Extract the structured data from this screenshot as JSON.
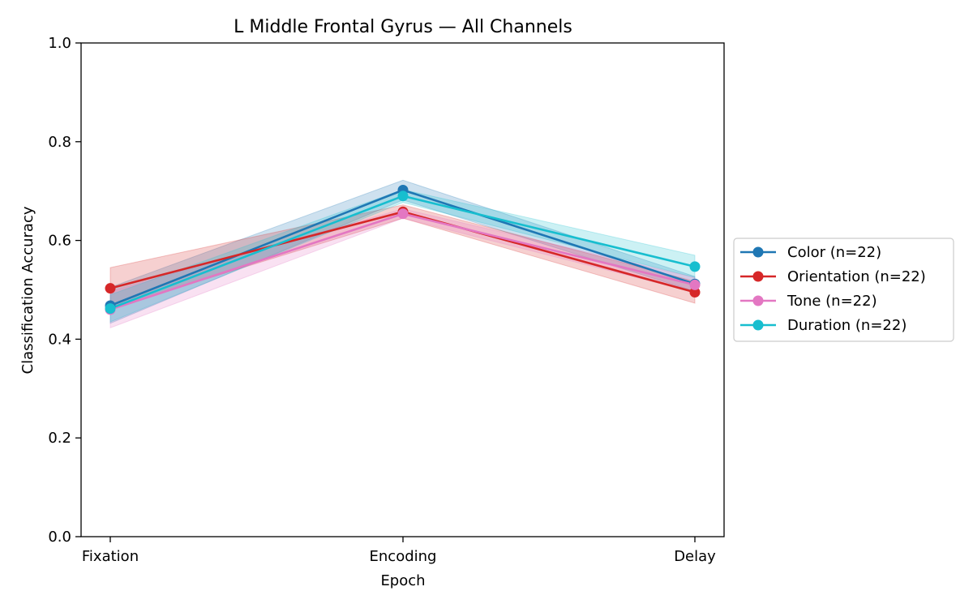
{
  "chart_data": {
    "type": "line",
    "title": "L Middle Frontal Gyrus — All Channels",
    "xlabel": "Epoch",
    "ylabel": "Classification Accuracy",
    "categories": [
      "Fixation",
      "Encoding",
      "Delay"
    ],
    "ylim": [
      0,
      1.0
    ],
    "yticks": [
      0.0,
      0.2,
      0.4,
      0.6,
      0.8,
      1.0
    ],
    "ytick_labels": [
      "0.0",
      "0.2",
      "0.4",
      "0.6",
      "0.8",
      "1.0"
    ],
    "grid": false,
    "legend_position": "right-outside",
    "series": [
      {
        "name": "Color (n=22)",
        "color": "#1f77b4",
        "values": [
          0.468,
          0.702,
          0.512
        ],
        "lower": [
          0.432,
          0.682,
          0.497
        ],
        "upper": [
          0.505,
          0.722,
          0.527
        ]
      },
      {
        "name": "Orientation (n=22)",
        "color": "#d62728",
        "values": [
          0.503,
          0.658,
          0.495
        ],
        "lower": [
          0.462,
          0.645,
          0.473
        ],
        "upper": [
          0.545,
          0.672,
          0.517
        ]
      },
      {
        "name": "Tone (n=22)",
        "color": "#e377c2",
        "values": [
          0.46,
          0.654,
          0.51
        ],
        "lower": [
          0.423,
          0.645,
          0.495
        ],
        "upper": [
          0.497,
          0.664,
          0.525
        ]
      },
      {
        "name": "Duration (n=22)",
        "color": "#17becf",
        "values": [
          0.462,
          0.69,
          0.547
        ],
        "lower": [
          0.435,
          0.677,
          0.525
        ],
        "upper": [
          0.49,
          0.703,
          0.57
        ]
      }
    ]
  }
}
